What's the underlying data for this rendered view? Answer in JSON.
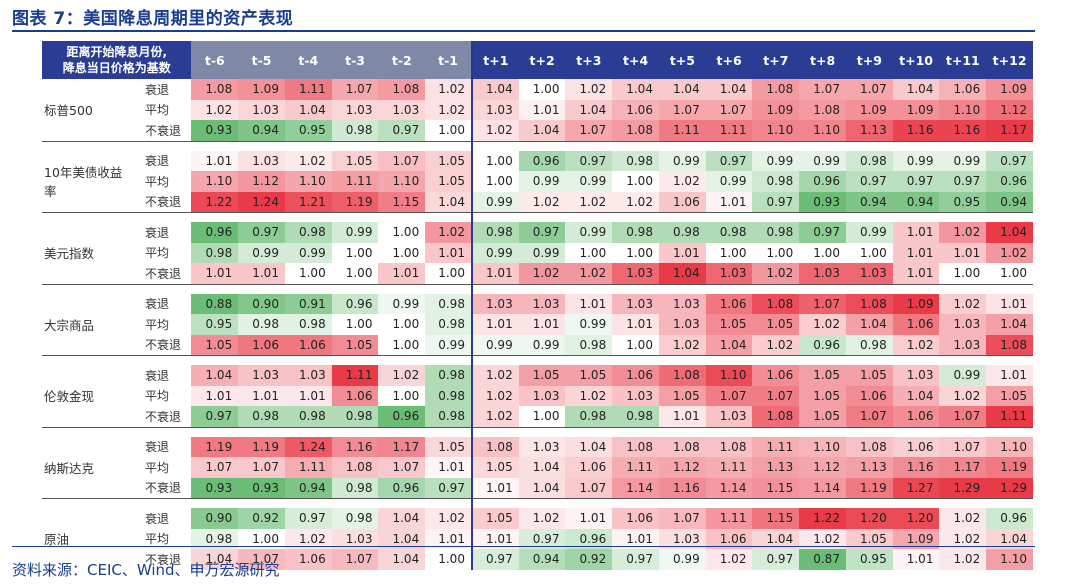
{
  "title": "图表 7：美国降息周期里的资产表现",
  "source": "资料来源：CEIC、Wind、申万宏源研究",
  "header": {
    "corner_line1": "距离开始降息月份,",
    "corner_line2": "降息当日价格为基数",
    "columns": [
      "t-6",
      "t-5",
      "t-4",
      "t-3",
      "t-2",
      "t-1",
      "t+1",
      "t+2",
      "t+3",
      "t+4",
      "t+5",
      "t+6",
      "t+7",
      "t+8",
      "t+9",
      "t+10",
      "t+11",
      "t+12"
    ]
  },
  "colors": {
    "header_bg": "#2a3c93",
    "header_pre_bg": "#7f88a6",
    "high": "#e8303e",
    "low": "#63b96e",
    "accent": "#1a3d8f"
  },
  "groups": [
    {
      "asset": "标普500",
      "rows": [
        {
          "scenario": "衰退",
          "values": [
            1.08,
            1.09,
            1.11,
            1.07,
            1.08,
            1.02,
            1.04,
            1.0,
            1.02,
            1.04,
            1.04,
            1.04,
            1.08,
            1.07,
            1.07,
            1.04,
            1.06,
            1.09
          ]
        },
        {
          "scenario": "平均",
          "values": [
            1.02,
            1.03,
            1.04,
            1.03,
            1.03,
            1.02,
            1.03,
            1.01,
            1.04,
            1.06,
            1.07,
            1.07,
            1.09,
            1.08,
            1.09,
            1.09,
            1.1,
            1.12
          ]
        },
        {
          "scenario": "不衰退",
          "values": [
            0.93,
            0.94,
            0.95,
            0.98,
            0.97,
            1.0,
            1.02,
            1.04,
            1.07,
            1.08,
            1.11,
            1.11,
            1.1,
            1.1,
            1.13,
            1.16,
            1.16,
            1.17
          ]
        }
      ]
    },
    {
      "asset": "10年美债收益率",
      "rows": [
        {
          "scenario": "衰退",
          "values": [
            1.01,
            1.03,
            1.02,
            1.05,
            1.07,
            1.05,
            1.0,
            0.96,
            0.97,
            0.98,
            0.99,
            0.97,
            0.99,
            0.99,
            0.98,
            0.99,
            0.99,
            0.97
          ]
        },
        {
          "scenario": "平均",
          "values": [
            1.1,
            1.12,
            1.1,
            1.11,
            1.1,
            1.05,
            1.0,
            0.99,
            0.99,
            1.0,
            1.02,
            0.99,
            0.98,
            0.96,
            0.97,
            0.97,
            0.97,
            0.96
          ]
        },
        {
          "scenario": "不衰退",
          "values": [
            1.22,
            1.24,
            1.21,
            1.19,
            1.15,
            1.04,
            0.99,
            1.02,
            1.02,
            1.02,
            1.06,
            1.01,
            0.97,
            0.93,
            0.94,
            0.94,
            0.95,
            0.94
          ]
        }
      ]
    },
    {
      "asset": "美元指数",
      "rows": [
        {
          "scenario": "衰退",
          "values": [
            0.96,
            0.97,
            0.98,
            0.99,
            1.0,
            1.02,
            0.98,
            0.97,
            0.99,
            0.98,
            0.98,
            0.98,
            0.98,
            0.97,
            0.99,
            1.01,
            1.02,
            1.04
          ]
        },
        {
          "scenario": "平均",
          "values": [
            0.98,
            0.99,
            0.99,
            1.0,
            1.0,
            1.01,
            0.99,
            0.99,
            1.0,
            1.0,
            1.01,
            1.0,
            1.0,
            1.0,
            1.0,
            1.01,
            1.01,
            1.02
          ]
        },
        {
          "scenario": "不衰退",
          "values": [
            1.01,
            1.01,
            1.0,
            1.0,
            1.01,
            1.0,
            1.01,
            1.02,
            1.02,
            1.03,
            1.04,
            1.03,
            1.02,
            1.03,
            1.03,
            1.01,
            1.0,
            1.0
          ]
        }
      ]
    },
    {
      "asset": "大宗商品",
      "rows": [
        {
          "scenario": "衰退",
          "values": [
            0.88,
            0.9,
            0.91,
            0.96,
            0.99,
            0.98,
            1.03,
            1.03,
            1.01,
            1.03,
            1.03,
            1.06,
            1.08,
            1.07,
            1.08,
            1.09,
            1.02,
            1.01
          ]
        },
        {
          "scenario": "平均",
          "values": [
            0.95,
            0.98,
            0.98,
            1.0,
            1.0,
            0.98,
            1.01,
            1.01,
            0.99,
            1.01,
            1.03,
            1.05,
            1.05,
            1.02,
            1.04,
            1.06,
            1.03,
            1.04
          ]
        },
        {
          "scenario": "不衰退",
          "values": [
            1.05,
            1.06,
            1.06,
            1.05,
            1.0,
            0.99,
            0.99,
            0.99,
            0.98,
            1.0,
            1.02,
            1.04,
            1.02,
            0.96,
            0.98,
            1.02,
            1.03,
            1.08
          ]
        }
      ]
    },
    {
      "asset": "伦敦金现",
      "rows": [
        {
          "scenario": "衰退",
          "values": [
            1.04,
            1.03,
            1.03,
            1.11,
            1.02,
            0.98,
            1.02,
            1.05,
            1.05,
            1.06,
            1.08,
            1.1,
            1.06,
            1.05,
            1.05,
            1.03,
            0.99,
            1.01
          ]
        },
        {
          "scenario": "平均",
          "values": [
            1.01,
            1.01,
            1.01,
            1.06,
            1.0,
            0.98,
            1.02,
            1.03,
            1.02,
            1.03,
            1.05,
            1.07,
            1.07,
            1.05,
            1.06,
            1.04,
            1.02,
            1.05
          ]
        },
        {
          "scenario": "不衰退",
          "values": [
            0.97,
            0.98,
            0.98,
            0.98,
            0.96,
            0.98,
            1.02,
            1.0,
            0.98,
            0.98,
            1.01,
            1.03,
            1.08,
            1.05,
            1.07,
            1.06,
            1.07,
            1.11
          ]
        }
      ]
    },
    {
      "asset": "纳斯达克",
      "rows": [
        {
          "scenario": "衰退",
          "values": [
            1.19,
            1.19,
            1.24,
            1.16,
            1.17,
            1.05,
            1.08,
            1.03,
            1.04,
            1.08,
            1.08,
            1.08,
            1.11,
            1.1,
            1.08,
            1.06,
            1.07,
            1.1
          ]
        },
        {
          "scenario": "平均",
          "values": [
            1.07,
            1.07,
            1.11,
            1.08,
            1.07,
            1.01,
            1.05,
            1.04,
            1.06,
            1.11,
            1.12,
            1.11,
            1.13,
            1.12,
            1.13,
            1.16,
            1.17,
            1.19
          ]
        },
        {
          "scenario": "不衰退",
          "values": [
            0.93,
            0.93,
            0.94,
            0.98,
            0.96,
            0.97,
            1.01,
            1.04,
            1.07,
            1.14,
            1.16,
            1.14,
            1.15,
            1.14,
            1.19,
            1.27,
            1.29,
            1.29
          ]
        }
      ]
    },
    {
      "asset": "原油",
      "rows": [
        {
          "scenario": "衰退",
          "values": [
            0.9,
            0.92,
            0.97,
            0.98,
            1.04,
            1.02,
            1.05,
            1.02,
            1.01,
            1.06,
            1.07,
            1.11,
            1.15,
            1.22,
            1.2,
            1.2,
            1.02,
            0.96
          ]
        },
        {
          "scenario": "平均",
          "values": [
            0.98,
            1.0,
            1.02,
            1.03,
            1.04,
            1.01,
            1.01,
            0.97,
            0.96,
            1.01,
            1.03,
            1.06,
            1.04,
            1.02,
            1.05,
            1.09,
            1.02,
            1.04
          ]
        },
        {
          "scenario": "不衰退",
          "values": [
            1.04,
            1.07,
            1.06,
            1.07,
            1.04,
            1.0,
            0.97,
            0.94,
            0.92,
            0.97,
            0.99,
            1.02,
            0.97,
            0.87,
            0.95,
            1.01,
            1.02,
            1.1
          ]
        }
      ]
    }
  ]
}
